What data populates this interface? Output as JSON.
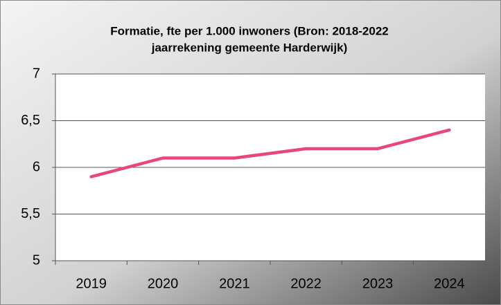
{
  "chart_data": {
    "type": "line",
    "title": [
      "Formatie, fte per 1.000 inwoners (Bron: 2018-2022",
      "jaarrekening gemeente Harderwijk)"
    ],
    "categories": [
      "2019",
      "2020",
      "2021",
      "2022",
      "2023",
      "2024"
    ],
    "values": [
      5.9,
      6.1,
      6.1,
      6.2,
      6.2,
      6.4
    ],
    "color": "#e8467c",
    "ylim": [
      5,
      7
    ],
    "yticks": [
      5,
      {
        "value": 5.5,
        "label": "5,5"
      },
      6,
      {
        "value": 6.5,
        "label": "6,5"
      },
      7
    ],
    "grid": true
  }
}
